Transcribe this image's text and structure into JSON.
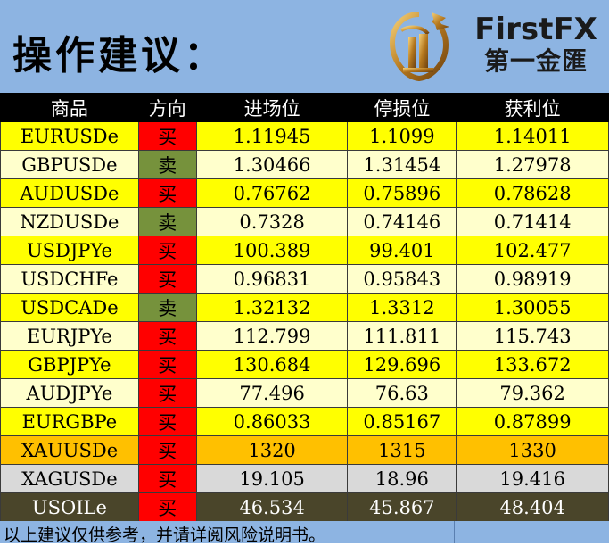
{
  "header": {
    "title": "操作建议：",
    "brand_name": "FirstFX",
    "brand_cn": "第一金匯",
    "logo_icon": "dragon-logo-icon"
  },
  "columns": [
    "商品",
    "方向",
    "进场位",
    "停损位",
    "获利位"
  ],
  "rows": [
    {
      "symbol": "EURUSDe",
      "direction": "买",
      "entry": "1.11945",
      "stop": "1.1099",
      "target": "1.14011",
      "bg": "#ffff00"
    },
    {
      "symbol": "GBPUSDe",
      "direction": "卖",
      "entry": "1.30466",
      "stop": "1.31454",
      "target": "1.27978",
      "bg": "#ffffcc"
    },
    {
      "symbol": "AUDUSDe",
      "direction": "买",
      "entry": "0.76762",
      "stop": "0.75896",
      "target": "0.78628",
      "bg": "#ffff00"
    },
    {
      "symbol": "NZDUSDe",
      "direction": "卖",
      "entry": "0.7328",
      "stop": "0.74146",
      "target": "0.71414",
      "bg": "#ffffcc"
    },
    {
      "symbol": "USDJPYe",
      "direction": "买",
      "entry": "100.389",
      "stop": "99.401",
      "target": "102.477",
      "bg": "#ffff00"
    },
    {
      "symbol": "USDCHFe",
      "direction": "买",
      "entry": "0.96831",
      "stop": "0.95843",
      "target": "0.98919",
      "bg": "#ffffcc"
    },
    {
      "symbol": "USDCADe",
      "direction": "卖",
      "entry": "1.32132",
      "stop": "1.3312",
      "target": "1.30055",
      "bg": "#ffff00"
    },
    {
      "symbol": "EURJPYe",
      "direction": "买",
      "entry": "112.799",
      "stop": "111.811",
      "target": "115.743",
      "bg": "#ffffcc"
    },
    {
      "symbol": "GBPJPYe",
      "direction": "买",
      "entry": "130.684",
      "stop": "129.696",
      "target": "133.672",
      "bg": "#ffff00"
    },
    {
      "symbol": "AUDJPYe",
      "direction": "买",
      "entry": "77.496",
      "stop": "76.63",
      "target": "79.362",
      "bg": "#ffffcc"
    },
    {
      "symbol": "EURGBPe",
      "direction": "买",
      "entry": "0.86033",
      "stop": "0.85167",
      "target": "0.87899",
      "bg": "#ffff00"
    },
    {
      "symbol": "XAUUSDe",
      "direction": "买",
      "entry": "1320",
      "stop": "1315",
      "target": "1330",
      "bg": "#ffc000"
    },
    {
      "symbol": "XAGUSDe",
      "direction": "买",
      "entry": "19.105",
      "stop": "18.96",
      "target": "19.416",
      "bg": "#d9d9d9"
    },
    {
      "symbol": "USOILe",
      "direction": "买",
      "entry": "46.534",
      "stop": "45.867",
      "target": "48.404",
      "bg": "#4a452a",
      "fg": "#ffffff"
    }
  ],
  "footer": {
    "note": "以上建议仅供参考，并请详阅风险说明书。"
  },
  "colors": {
    "header_bg": "#8db4e2",
    "table_header_bg": "#000000",
    "buy": "#ff0000",
    "sell": "#76923c"
  }
}
